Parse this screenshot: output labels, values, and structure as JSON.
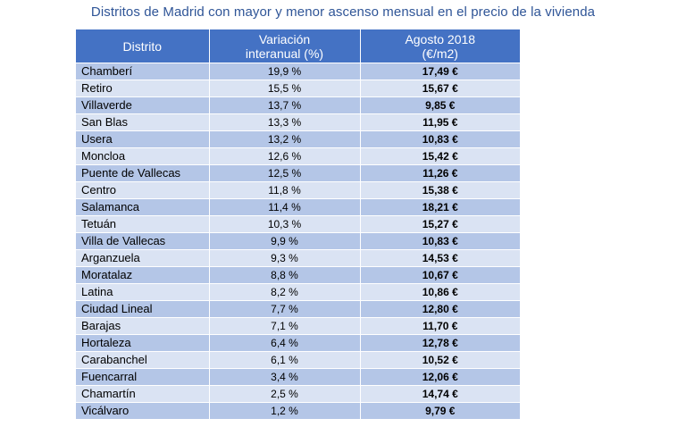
{
  "title": "Distritos de Madrid con mayor y menor ascenso mensual en el precio de la vivienda",
  "table": {
    "headers": {
      "district": "Distrito",
      "variation_line1": "Variación",
      "variation_line2": "interanual (%)",
      "price_line1": "Agosto 2018",
      "price_line2": "(€/m2)"
    },
    "rows": [
      {
        "district": "Chamberí",
        "variation": "19,9 %",
        "price": "17,49 €"
      },
      {
        "district": "Retiro",
        "variation": "15,5 %",
        "price": "15,67 €"
      },
      {
        "district": "Villaverde",
        "variation": "13,7 %",
        "price": "9,85 €"
      },
      {
        "district": "San Blas",
        "variation": "13,3 %",
        "price": "11,95 €"
      },
      {
        "district": "Usera",
        "variation": "13,2 %",
        "price": "10,83 €"
      },
      {
        "district": "Moncloa",
        "variation": "12,6 %",
        "price": "15,42 €"
      },
      {
        "district": "Puente de Vallecas",
        "variation": "12,5 %",
        "price": "11,26 €"
      },
      {
        "district": "Centro",
        "variation": "11,8 %",
        "price": "15,38 €"
      },
      {
        "district": "Salamanca",
        "variation": "11,4 %",
        "price": "18,21 €"
      },
      {
        "district": "Tetuán",
        "variation": "10,3 %",
        "price": "15,27 €"
      },
      {
        "district": "Villa de Vallecas",
        "variation": "9,9 %",
        "price": "10,83 €"
      },
      {
        "district": "Arganzuela",
        "variation": "9,3 %",
        "price": "14,53 €"
      },
      {
        "district": "Moratalaz",
        "variation": "8,8 %",
        "price": "10,67 €"
      },
      {
        "district": "Latina",
        "variation": "8,2 %",
        "price": "10,86 €"
      },
      {
        "district": "Ciudad Lineal",
        "variation": "7,7 %",
        "price": "12,80 €"
      },
      {
        "district": "Barajas",
        "variation": "7,1 %",
        "price": "11,70 €"
      },
      {
        "district": "Hortaleza",
        "variation": "6,4 %",
        "price": "12,78 €"
      },
      {
        "district": "Carabanchel",
        "variation": "6,1 %",
        "price": "10,52 €"
      },
      {
        "district": "Fuencarral",
        "variation": "3,4 %",
        "price": "12,06 €"
      },
      {
        "district": "Chamartín",
        "variation": "2,5 %",
        "price": "14,74 €"
      },
      {
        "district": "Vicálvaro",
        "variation": "1,2 %",
        "price": "9,79 €"
      }
    ]
  },
  "colors": {
    "title": "#2f5597",
    "header_bg": "#4472c4",
    "header_text": "#ffffff",
    "row_odd": "#b4c6e7",
    "row_even": "#dae3f3"
  }
}
